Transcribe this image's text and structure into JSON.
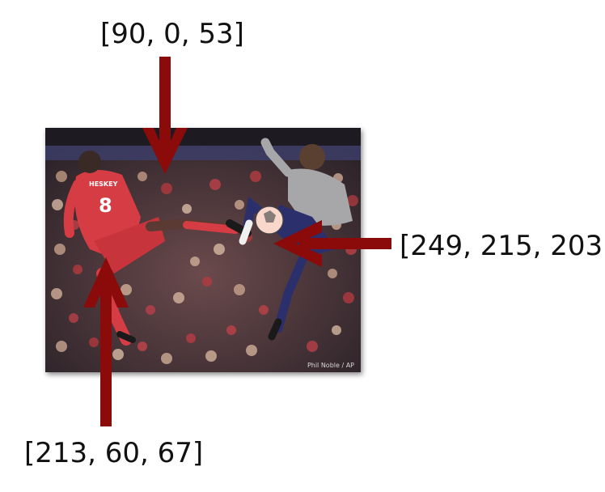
{
  "labels": {
    "top": "[90, 0, 53]",
    "right": "[249, 215, 203]",
    "bottom": "[213, 60, 67]"
  },
  "photo": {
    "credit": "Phil Noble / AP",
    "jersey_name": "HESKEY",
    "jersey_number": "8"
  },
  "colors": {
    "arrow": "#8b0a0a",
    "red_kit": "#d63c43",
    "grey_kit": "#a7a7a9",
    "navy_shorts": "#2b2f6b",
    "crowd_dark": "#2a2228",
    "stand_band": "#3d3f6b"
  }
}
